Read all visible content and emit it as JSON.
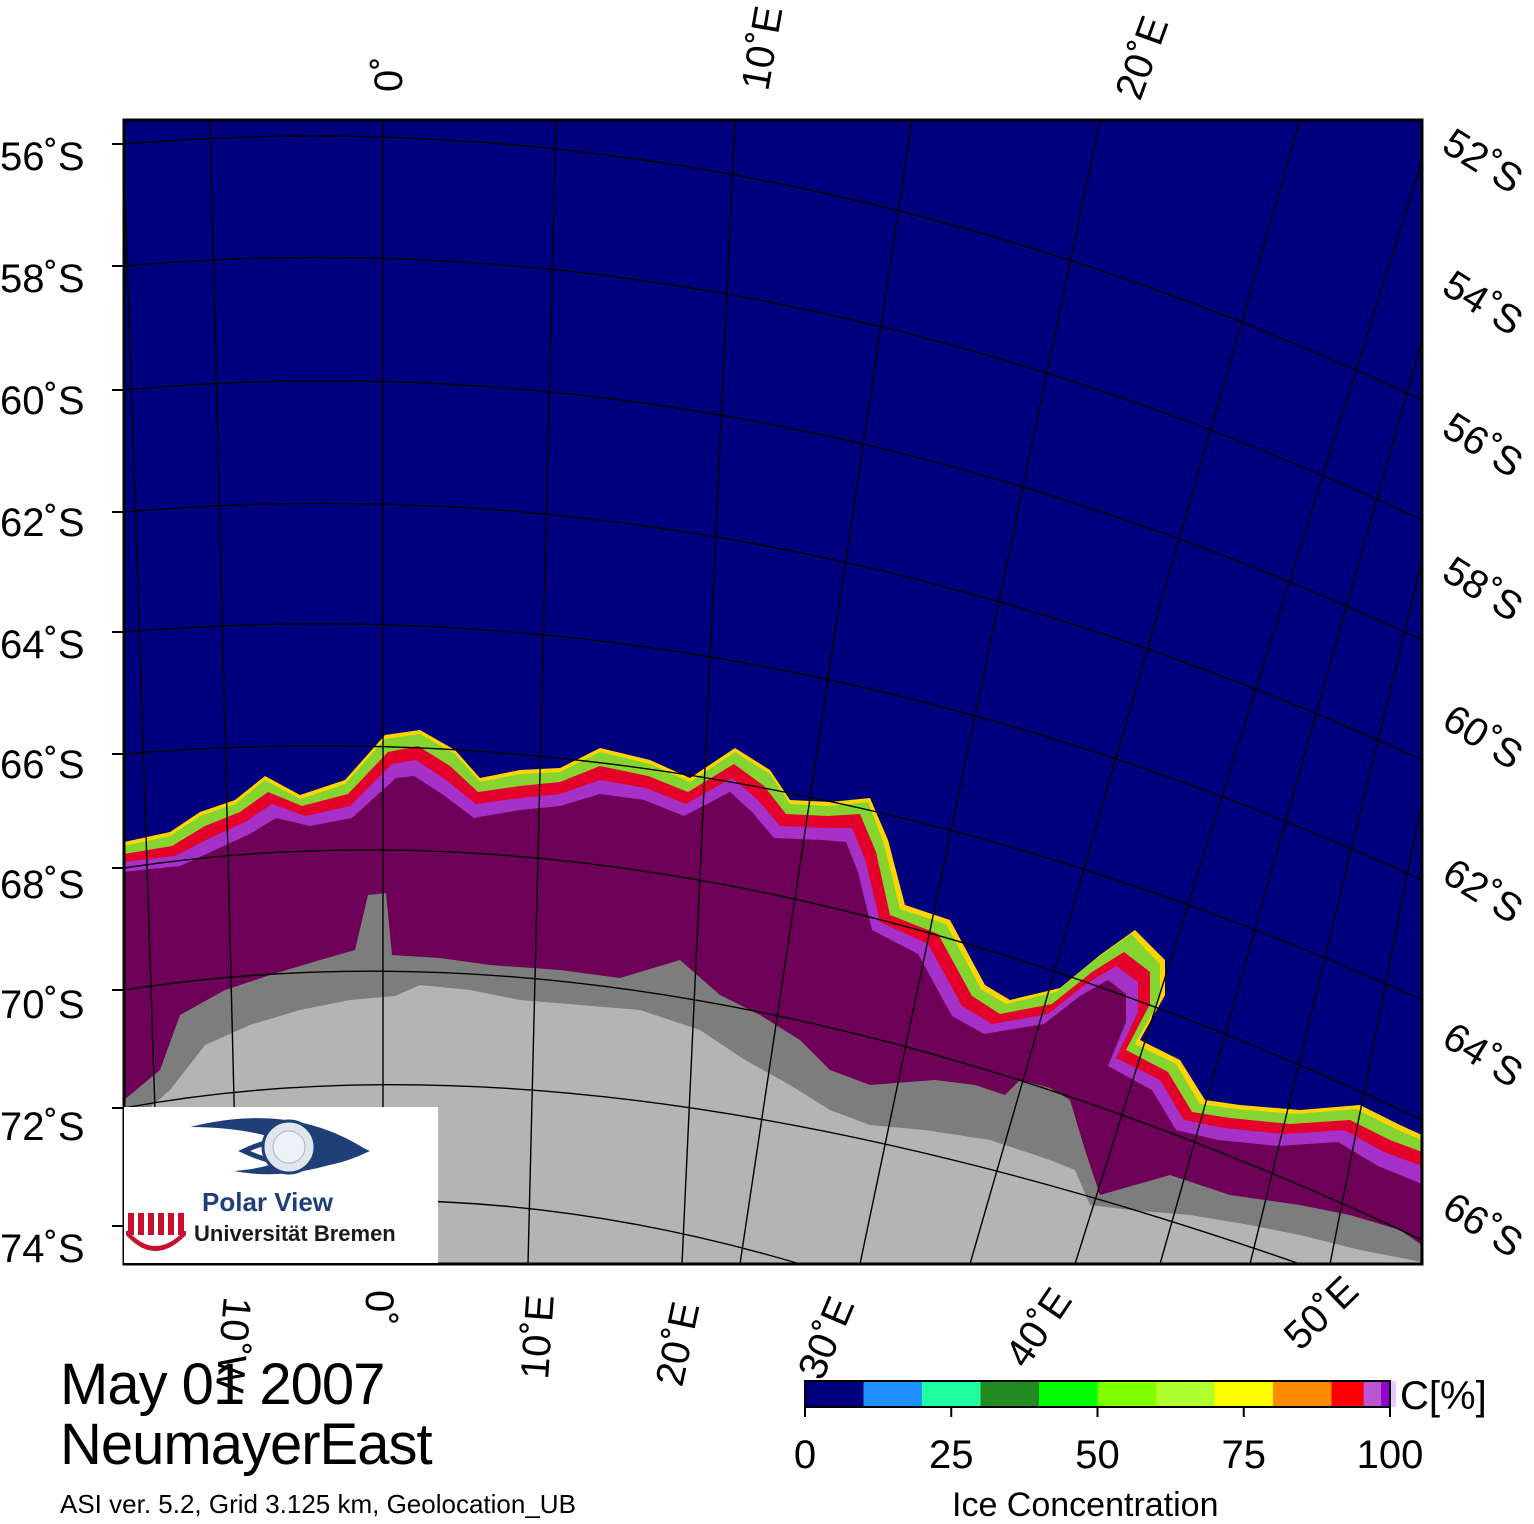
{
  "map": {
    "longitude_labels_top": [
      "0˚",
      "10˚E",
      "20˚E"
    ],
    "longitude_labels_bottom": [
      "10˚W",
      "0˚",
      "10˚E",
      "20˚E",
      "30˚E",
      "40˚E",
      "50˚E"
    ],
    "latitude_labels_left": [
      "56˚S",
      "58˚S",
      "60˚S",
      "62˚S",
      "64˚S",
      "66˚S",
      "68˚S",
      "70˚S",
      "72˚S",
      "74˚S"
    ],
    "latitude_labels_right": [
      "52˚S",
      "54˚S",
      "56˚S",
      "58˚S",
      "60˚S",
      "62˚S",
      "64˚S",
      "66˚S"
    ],
    "colors": {
      "ocean": "#00007f",
      "land": "#b4b4b4",
      "ice_shelf": "#7d7d7d",
      "ice_core": "#6e0057",
      "grid": "#000000"
    }
  },
  "info": {
    "date": "May 01 2007",
    "region": "NeumayerEast",
    "credits": "ASI ver. 5.2,  Grid 3.125 km, Geolocation_UB"
  },
  "colorbar": {
    "colors": [
      "#00007f",
      "#1e90ff",
      "#1effa0",
      "#228b22",
      "#00ff00",
      "#7fff00",
      "#adff2f",
      "#ffff00",
      "#ff8c00",
      "#ff0000",
      "#ba55d3",
      "#9400d3",
      "#e6c8ff"
    ],
    "ticks": [
      "0",
      "25",
      "50",
      "75",
      "100"
    ],
    "unit": "C[%]",
    "title": "Ice Concentration"
  },
  "logo": {
    "line1": "Polar View",
    "line2": "Universität Bremen"
  }
}
